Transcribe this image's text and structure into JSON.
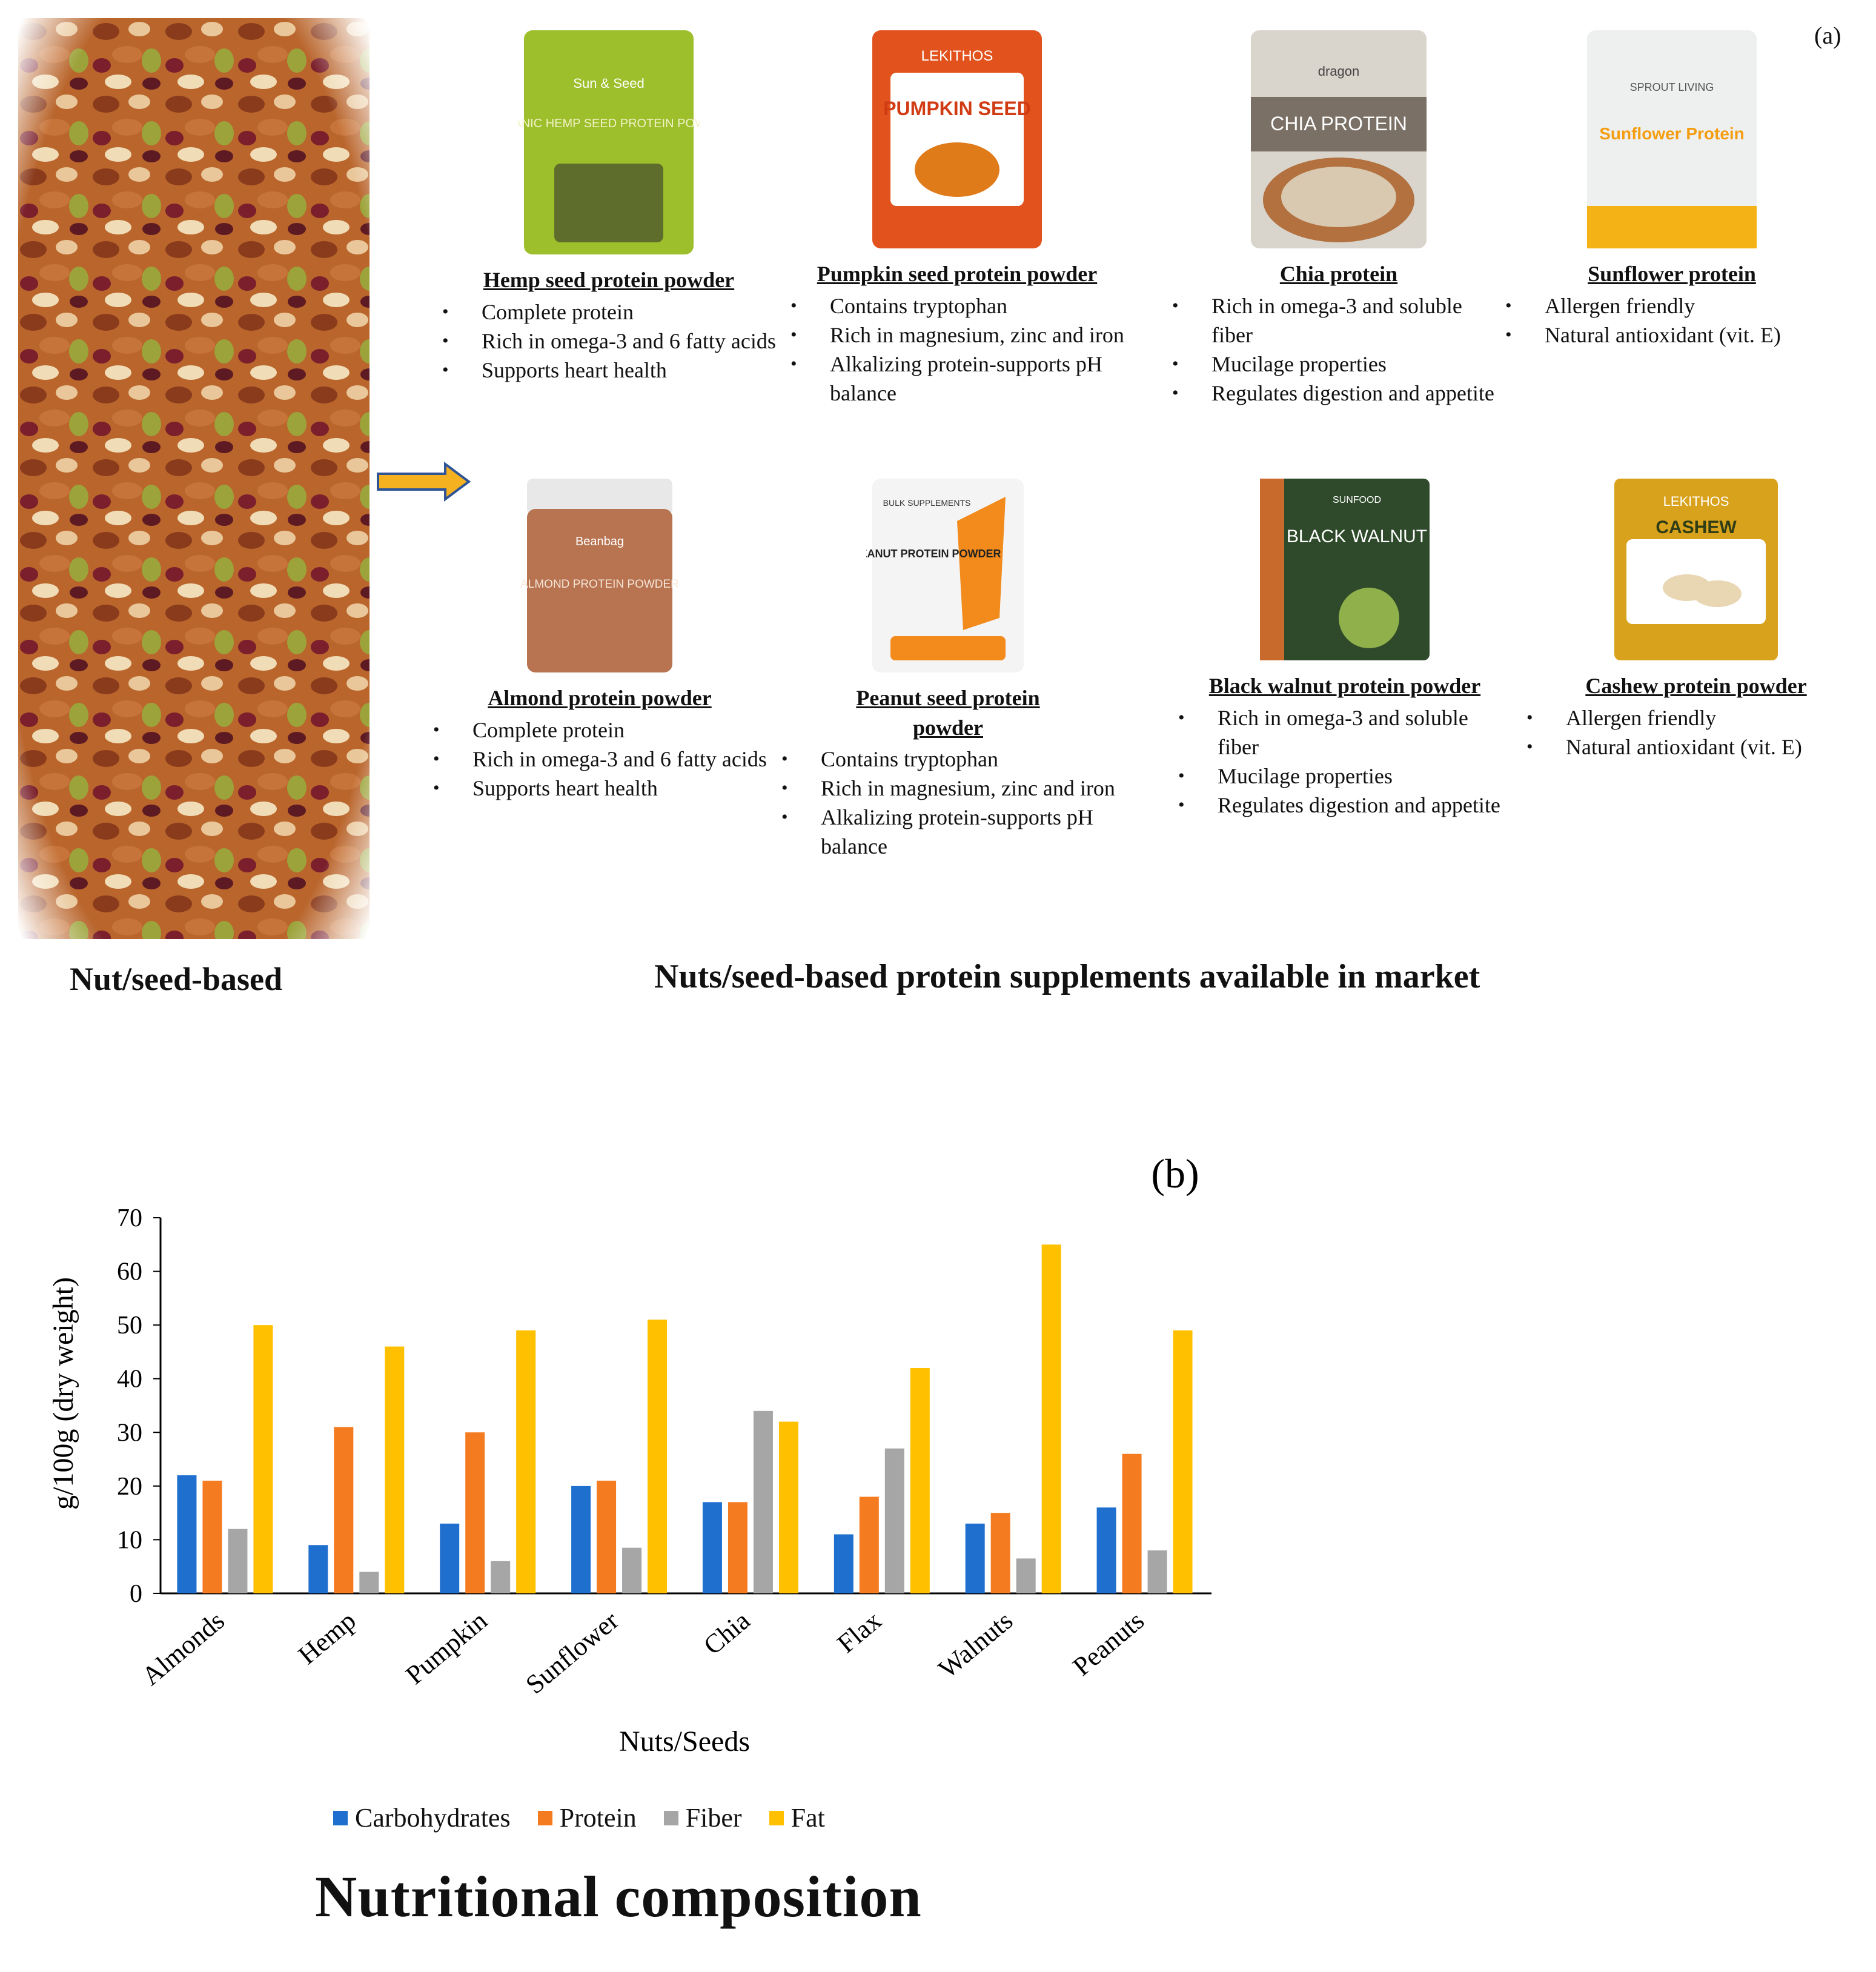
{
  "panel_a": {
    "label": "(a)",
    "left_caption": "Nut/seed-based",
    "main_caption": "Nuts/seed-based protein supplements available in market",
    "products": [
      {
        "name": "Hemp seed protein powder",
        "pack": {
          "brand": "Sun & Seed",
          "text": "ORGANIC HEMP SEED PROTEIN POWDER"
        },
        "bullets": [
          "Complete protein",
          "Rich in omega-3 and 6 fatty acids",
          "Supports heart health"
        ]
      },
      {
        "name": "Pumpkin seed protein powder",
        "pack": {
          "brand": "LEKITHOS",
          "text": "PUMPKIN SEED"
        },
        "bullets": [
          "Contains tryptophan",
          "Rich in magnesium, zinc and iron",
          "Alkalizing protein-supports pH balance"
        ]
      },
      {
        "name": "Chia protein",
        "pack": {
          "brand": "dragon",
          "text": "CHIA PROTEIN"
        },
        "bullets": [
          "Rich in omega-3 and soluble fiber",
          "Mucilage properties",
          "Regulates digestion and appetite"
        ]
      },
      {
        "name": "Sunflower protein",
        "pack": {
          "brand": "SPROUT LIVING",
          "text": "Sunflower Protein"
        },
        "bullets": [
          "Allergen friendly",
          "Natural antioxidant (vit. E)"
        ]
      },
      {
        "name": "Almond protein powder",
        "pack": {
          "brand": "Beanbag",
          "text": "ALMOND PROTEIN POWDER"
        },
        "bullets": [
          "Complete protein",
          "Rich in omega-3 and 6 fatty acids",
          "Supports heart health"
        ]
      },
      {
        "name": "Peanut seed protein powder",
        "pack": {
          "brand": "BULK SUPPLEMENTS",
          "text": "PEANUT PROTEIN POWDER"
        },
        "bullets": [
          "Contains tryptophan",
          "Rich in magnesium, zinc and iron",
          "Alkalizing protein-supports pH balance"
        ]
      },
      {
        "name": "Black walnut protein powder",
        "pack": {
          "brand": "SUNFOOD",
          "text": "BLACK WALNUT"
        },
        "bullets": [
          "Rich in omega-3 and soluble fiber",
          "Mucilage properties",
          "Regulates digestion and appetite"
        ]
      },
      {
        "name": "Cashew protein powder",
        "pack": {
          "brand": "LEKITHOS",
          "text": "CASHEW"
        },
        "bullets": [
          "Allergen friendly",
          "Natural antioxidant (vit. E)"
        ]
      }
    ]
  },
  "panel_b": {
    "label": "(b)",
    "caption": "Nutritional composition"
  },
  "chart_data": {
    "type": "bar",
    "title": "(b)",
    "xlabel": "Nuts/Seeds",
    "ylabel": "g/100g (dry weight)",
    "ylim": [
      0,
      70
    ],
    "yticks": [
      0,
      10,
      20,
      30,
      40,
      50,
      60,
      70
    ],
    "grid": false,
    "legend": "bottom",
    "categories": [
      "Almonds",
      "Hemp",
      "Pumpkin",
      "Sunflower",
      "Chia",
      "Flax",
      "Walnuts",
      "Peanuts"
    ],
    "series": [
      {
        "name": "Carbohydrates",
        "color": "#1f6fcf",
        "values": [
          22,
          9,
          13,
          20,
          17,
          11,
          13,
          16
        ]
      },
      {
        "name": "Protein",
        "color": "#f47b20",
        "values": [
          21,
          31,
          30,
          21,
          17,
          18,
          15,
          26
        ]
      },
      {
        "name": "Fiber",
        "color": "#a6a6a6",
        "values": [
          12,
          4,
          6,
          8.5,
          34,
          27,
          6.5,
          8
        ]
      },
      {
        "name": "Fat",
        "color": "#ffc000",
        "values": [
          50,
          46,
          49,
          51,
          32,
          42,
          65,
          49
        ]
      }
    ]
  }
}
